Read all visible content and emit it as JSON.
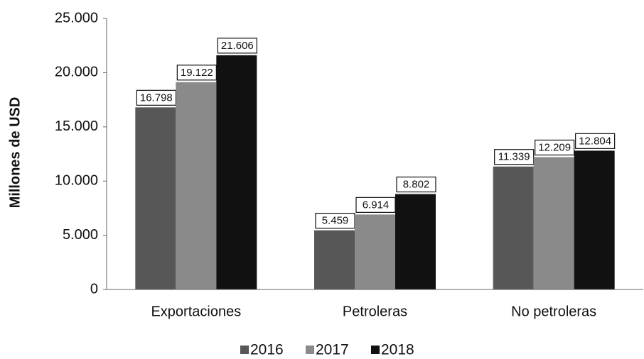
{
  "chart_data": {
    "type": "bar",
    "ylabel": "Millones de USD",
    "categories": [
      "Exportaciones",
      "Petroleras",
      "No petroleras"
    ],
    "series": [
      {
        "name": "2016",
        "color": "#575757",
        "values": [
          16798,
          5459,
          11339
        ],
        "value_labels": [
          "16.798",
          "5.459",
          "11.339"
        ]
      },
      {
        "name": "2017",
        "color": "#8a8a8a",
        "values": [
          19122,
          6914,
          12209
        ],
        "value_labels": [
          "19.122",
          "6.914",
          "12.209"
        ]
      },
      {
        "name": "2018",
        "color": "#111111",
        "values": [
          21606,
          8802,
          12804
        ],
        "value_labels": [
          "21.606",
          "8.802",
          "12.804"
        ]
      }
    ],
    "ylim": [
      0,
      25000
    ],
    "yticks": [
      0,
      {
        "value": 5000,
        "label": "5.000"
      },
      {
        "value": 10000,
        "label": "10.000"
      },
      {
        "value": 15000,
        "label": "15.000"
      },
      {
        "value": 20000,
        "label": "20.000"
      },
      {
        "value": 25000,
        "label": "25.000"
      }
    ],
    "legend": "bottom"
  }
}
